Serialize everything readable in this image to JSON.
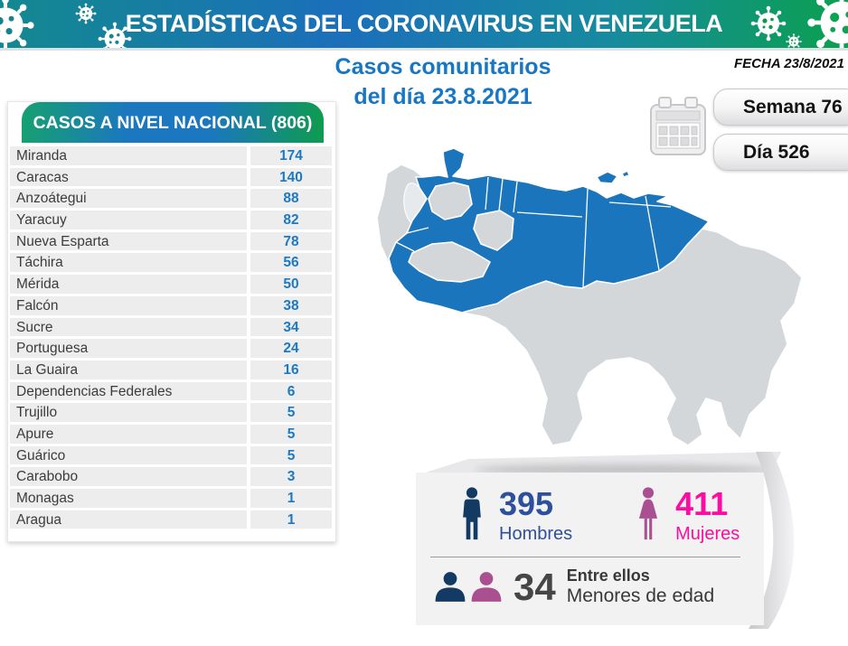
{
  "header": {
    "title": "ESTADÍSTICAS DEL CORONAVIRUS EN VENEZUELA"
  },
  "subtitle": {
    "line1": "Casos comunitarios",
    "line2": "del día 23.8.2021"
  },
  "date_info": {
    "fecha": "FECHA 23/8/2021",
    "week_pill": "Semana 76",
    "day_pill": "Día 526",
    "calendar_icon": "calendar-icon"
  },
  "table": {
    "header": "CASOS A NIVEL NACIONAL (806)",
    "total": 806,
    "rows": [
      {
        "state": "Miranda",
        "cases": 174
      },
      {
        "state": "Caracas",
        "cases": 140
      },
      {
        "state": "Anzoátegui",
        "cases": 88
      },
      {
        "state": "Yaracuy",
        "cases": 82
      },
      {
        "state": "Nueva Esparta",
        "cases": 78
      },
      {
        "state": "Táchira",
        "cases": 56
      },
      {
        "state": "Mérida",
        "cases": 50
      },
      {
        "state": "Falcón",
        "cases": 38
      },
      {
        "state": "Sucre",
        "cases": 34
      },
      {
        "state": "Portuguesa",
        "cases": 24
      },
      {
        "state": "La Guaira",
        "cases": 16
      },
      {
        "state": "Dependencias Federales",
        "cases": 6
      },
      {
        "state": "Trujillo",
        "cases": 5
      },
      {
        "state": "Apure",
        "cases": 5
      },
      {
        "state": "Guárico",
        "cases": 5
      },
      {
        "state": "Carabobo",
        "cases": 3
      },
      {
        "state": "Monagas",
        "cases": 1
      },
      {
        "state": "Aragua",
        "cases": 1
      }
    ]
  },
  "stats": {
    "men": {
      "value": "395",
      "label": "Hombres"
    },
    "women": {
      "value": "411",
      "label": "Mujeres"
    },
    "minors": {
      "value": "34",
      "label_line1": "Entre ellos",
      "label_line2": "Menores de edad"
    }
  },
  "colors": {
    "banner_teal": "#13898f",
    "banner_blue": "#1b6fbb",
    "banner_green": "#0ba04f",
    "title_blue": "#1777c5",
    "value_blue": "#1c79c3",
    "map_base": "#d4d7da",
    "map_highlight": "#1b75bc",
    "men_blue": "#2e4f9c",
    "men_icon": "#123a63",
    "women_pink": "#fb0da1",
    "women_icon": "#aa4f8f",
    "minors_gray": "#464646"
  },
  "chart_data": {
    "type": "table",
    "title": "CASOS A NIVEL NACIONAL (806)",
    "date": "23.8.2021",
    "week": 76,
    "day": 526,
    "total_cases": 806,
    "categories": [
      "Miranda",
      "Caracas",
      "Anzoátegui",
      "Yaracuy",
      "Nueva Esparta",
      "Táchira",
      "Mérida",
      "Falcón",
      "Sucre",
      "Portuguesa",
      "La Guaira",
      "Dependencias Federales",
      "Trujillo",
      "Apure",
      "Guárico",
      "Carabobo",
      "Monagas",
      "Aragua"
    ],
    "values": [
      174,
      140,
      88,
      82,
      78,
      56,
      50,
      38,
      34,
      24,
      16,
      6,
      5,
      5,
      5,
      3,
      1,
      1
    ],
    "gender_breakdown": {
      "hombres": 395,
      "mujeres": 411,
      "menores_de_edad": 34
    },
    "map_highlighted_states": [
      "Falcón",
      "Yaracuy",
      "Carabobo",
      "Aragua",
      "Caracas",
      "La Guaira",
      "Miranda",
      "Guárico",
      "Anzoátegui",
      "Monagas",
      "Sucre",
      "Nueva Esparta",
      "Trujillo",
      "Mérida",
      "Táchira",
      "Portuguesa",
      "Apure"
    ]
  }
}
